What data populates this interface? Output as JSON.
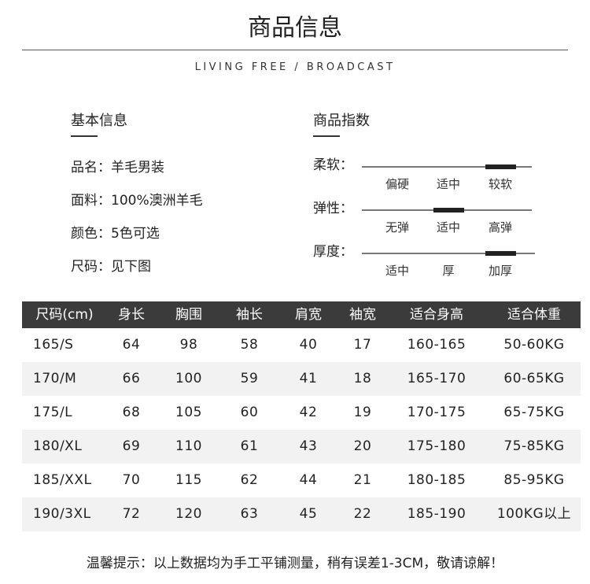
{
  "header": {
    "title": "商品信息",
    "subtitle": "LIVING FREE / BROADCAST"
  },
  "basic": {
    "heading": "基本信息",
    "items": [
      {
        "label": "品名：",
        "value": "羊毛男装"
      },
      {
        "label": "面料：",
        "value": "100%澳洲羊毛"
      },
      {
        "label": "颜色：",
        "value": "5色可选"
      },
      {
        "label": "尺码：",
        "value": "见下图"
      }
    ]
  },
  "index": {
    "heading": "商品指数",
    "rows": [
      {
        "label": "柔软：",
        "ticks": [
          "偏硬",
          "适中",
          "较软"
        ],
        "level": "较软"
      },
      {
        "label": "弹性：",
        "ticks": [
          "无弹",
          "适中",
          "高弹"
        ],
        "level": "适中"
      },
      {
        "label": "厚度：",
        "ticks": [
          "适中",
          "厚",
          "加厚"
        ],
        "level": "加厚"
      }
    ]
  },
  "table": {
    "headers": [
      "尺码(cm)",
      "身长",
      "胸围",
      "袖长",
      "肩宽",
      "袖宽",
      "适合身高",
      "适合体重"
    ],
    "rows": [
      [
        "165/S",
        "64",
        "98",
        "58",
        "40",
        "17",
        "160-165",
        "50-60KG"
      ],
      [
        "170/M",
        "66",
        "100",
        "59",
        "41",
        "18",
        "165-170",
        "60-65KG"
      ],
      [
        "175/L",
        "68",
        "105",
        "60",
        "42",
        "19",
        "170-175",
        "65-75KG"
      ],
      [
        "180/XL",
        "69",
        "110",
        "61",
        "43",
        "20",
        "175-180",
        "75-85KG"
      ],
      [
        "185/XXL",
        "70",
        "115",
        "62",
        "44",
        "21",
        "180-185",
        "85-95KG"
      ],
      [
        "190/3XL",
        "72",
        "120",
        "63",
        "45",
        "22",
        "185-190",
        "100KG以上"
      ]
    ]
  },
  "footer": {
    "note": "温馨提示：以上数据均为手工平铺测量，稍有误差1-3CM，敬请谅解！"
  }
}
